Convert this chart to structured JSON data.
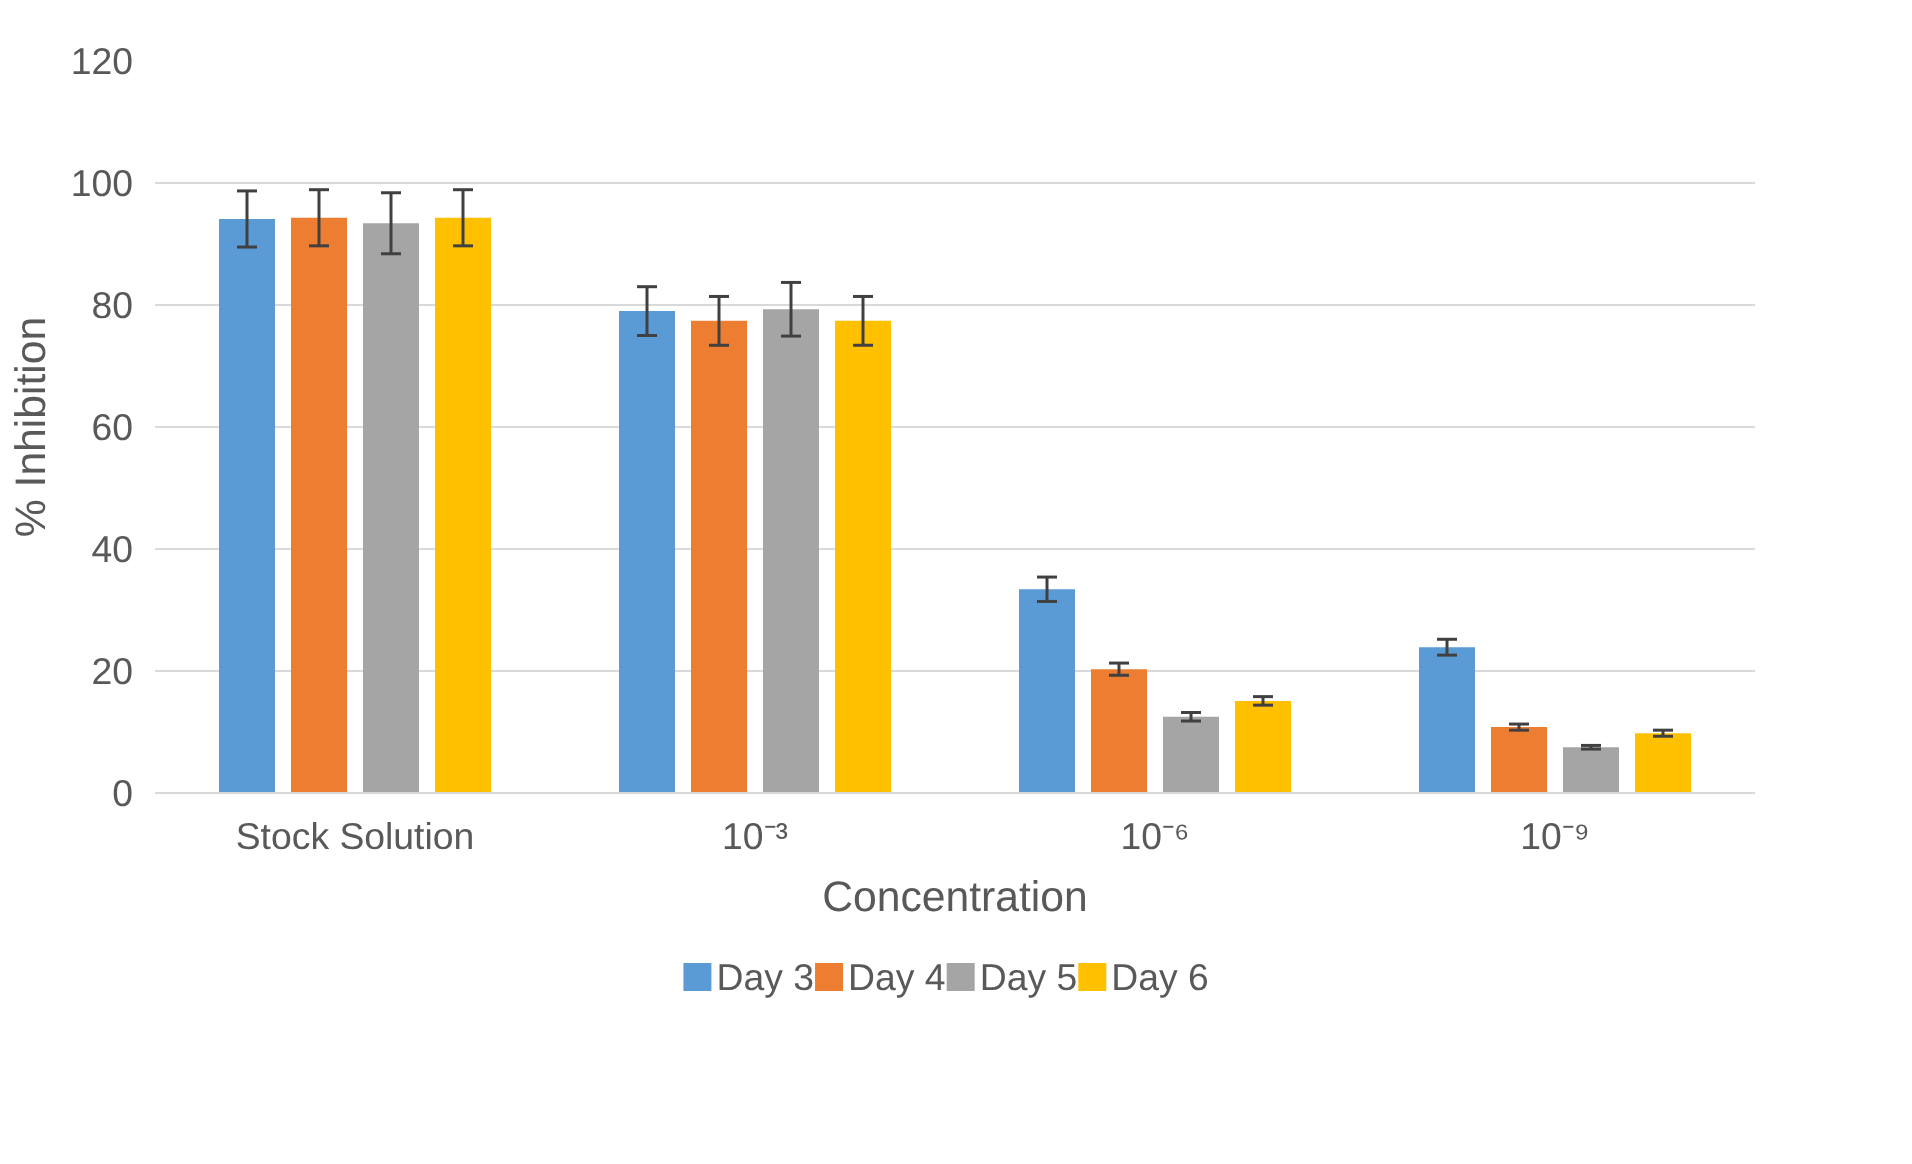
{
  "chart_data": {
    "type": "bar",
    "xlabel": "Concentration",
    "ylabel": "% Inhibition",
    "categories": [
      "Stock Solution",
      "10⁻³",
      "10⁻⁶",
      "10⁻⁹"
    ],
    "series": [
      {
        "name": "Day 3",
        "color": "#5b9bd5",
        "values": [
          94.1,
          79,
          33.4,
          23.9
        ],
        "errors": [
          4.6,
          4,
          2,
          1.3
        ]
      },
      {
        "name": "Day 4",
        "color": "#ed7d31",
        "values": [
          94.3,
          77.4,
          20.3,
          10.8
        ],
        "errors": [
          4.6,
          4,
          1,
          0.5
        ]
      },
      {
        "name": "Day 5",
        "color": "#a5a5a5",
        "values": [
          93.4,
          79.3,
          12.5,
          7.5
        ],
        "errors": [
          5,
          4.4,
          0.7,
          0.3
        ]
      },
      {
        "name": "Day 6",
        "color": "#ffc000",
        "values": [
          94.3,
          77.4,
          15.1,
          9.8
        ],
        "errors": [
          4.6,
          4,
          0.7,
          0.5
        ]
      }
    ],
    "ylim": [
      0,
      120
    ],
    "yticks": [
      0,
      20,
      40,
      60,
      80,
      100,
      120
    ],
    "grid": "y",
    "legend": "bottom"
  }
}
